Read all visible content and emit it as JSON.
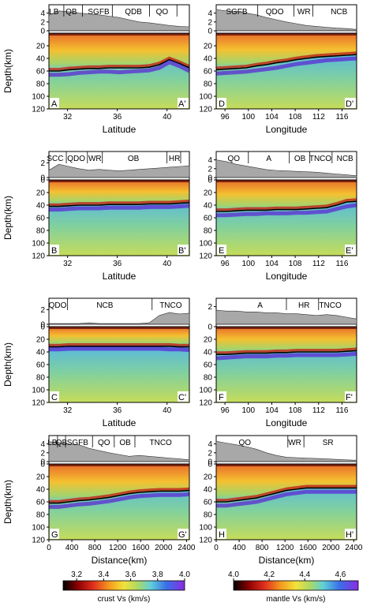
{
  "chart_data": {
    "type": "heatmap",
    "panels": [
      {
        "id": "A",
        "start_label": "A",
        "end_label": "A'",
        "xlabel": "Latitude",
        "xlim": [
          30.5,
          41.8
        ],
        "xticks": [
          "32",
          "36",
          "40"
        ],
        "xtick_values": [
          32,
          36,
          40
        ],
        "ylabel": "Depth(km)",
        "ylim": [
          0,
          120
        ],
        "yticks": [
          "20",
          "40",
          "60",
          "80",
          "100",
          "120"
        ],
        "elev_ticks": [
          "0",
          "2",
          "4"
        ],
        "elev_max": 5,
        "regions": [
          {
            "label": "LB",
            "x": 30.9
          },
          {
            "label": "QB",
            "x": 32.3
          },
          {
            "label": "SGFB",
            "x": 34.5
          },
          {
            "label": "QDB",
            "x": 37.3
          },
          {
            "label": "QO",
            "x": 39.6
          }
        ],
        "region_ticks": [
          31.7,
          33.2,
          35.6,
          38.6,
          40.8
        ],
        "moho_depth": [
          60,
          60,
          58,
          57,
          56,
          56,
          55,
          55,
          55,
          55,
          54,
          50,
          42,
          48,
          55
        ],
        "lab_depth": [
          66,
          66,
          65,
          63,
          62,
          61,
          61,
          62,
          61,
          60,
          59,
          55,
          46,
          52,
          60
        ],
        "topography": [
          3.5,
          4.5,
          4.3,
          4.0,
          3.8,
          3.6,
          3.3,
          3.0,
          2.5,
          2.0,
          1.8,
          1.5,
          1.2,
          1.0,
          0.9
        ]
      },
      {
        "id": "D",
        "start_label": "D",
        "end_label": "D'",
        "xlabel": "Longitude",
        "xlim": [
          94.5,
          118.5
        ],
        "xticks": [
          "96",
          "100",
          "104",
          "108",
          "112",
          "116"
        ],
        "xtick_values": [
          96,
          100,
          104,
          108,
          112,
          116
        ],
        "ylabel": "",
        "ylim": [
          0,
          120
        ],
        "yticks": [
          "20",
          "40",
          "60",
          "80",
          "100",
          "120"
        ],
        "elev_ticks": [
          "0",
          "2",
          "4"
        ],
        "elev_max": 5,
        "regions": [
          {
            "label": "SGFB",
            "x": 98.0
          },
          {
            "label": "QDO",
            "x": 104.5
          },
          {
            "label": "WR",
            "x": 109.5
          },
          {
            "label": "NCB",
            "x": 115.5
          }
        ],
        "region_ticks": [
          101.6,
          107.8,
          111.0
        ],
        "moho_depth": [
          58,
          57,
          56,
          55,
          52,
          50,
          47,
          45,
          42,
          40,
          38,
          37,
          36,
          35,
          34
        ],
        "lab_depth": [
          64,
          63,
          62,
          61,
          59,
          57,
          55,
          52,
          49,
          47,
          45,
          43,
          42,
          41,
          40
        ],
        "topography": [
          4.8,
          4.5,
          4.4,
          4.0,
          3.6,
          3.0,
          2.5,
          2.0,
          1.6,
          1.2,
          1.0,
          0.8,
          0.6,
          0.5,
          0.3
        ]
      },
      {
        "id": "B",
        "start_label": "B",
        "end_label": "B'",
        "xlabel": "Latitude",
        "xlim": [
          30.5,
          41.8
        ],
        "xticks": [
          "32",
          "36",
          "40"
        ],
        "xtick_values": [
          32,
          36,
          40
        ],
        "ylabel": "Depth(km)",
        "ylim": [
          0,
          120
        ],
        "yticks": [
          "0",
          "20",
          "40",
          "60",
          "80",
          "100",
          "120"
        ],
        "elev_ticks": [
          "0",
          "2"
        ],
        "elev_max": 3,
        "regions": [
          {
            "label": "SCC",
            "x": 31.0
          },
          {
            "label": "QDO",
            "x": 32.7
          },
          {
            "label": "WR",
            "x": 34.2
          },
          {
            "label": "OB",
            "x": 37.3
          },
          {
            "label": "HR",
            "x": 40.6
          }
        ],
        "region_ticks": [
          31.9,
          33.6,
          34.8,
          40.0,
          41.1
        ],
        "moho_depth": [
          42,
          42,
          41,
          40,
          40,
          40,
          39,
          39,
          39,
          39,
          38,
          38,
          38,
          37,
          36
        ],
        "lab_depth": [
          47,
          47,
          46,
          45,
          45,
          45,
          44,
          44,
          44,
          44,
          43,
          43,
          43,
          42,
          41
        ],
        "topography": [
          1.0,
          1.8,
          1.5,
          1.2,
          1.0,
          1.1,
          1.0,
          0.9,
          1.0,
          1.1,
          1.2,
          1.3,
          1.4,
          1.5,
          1.6
        ]
      },
      {
        "id": "E",
        "start_label": "E",
        "end_label": "E'",
        "xlabel": "Longitude",
        "xlim": [
          94.5,
          118.5
        ],
        "xticks": [
          "96",
          "100",
          "104",
          "108",
          "112",
          "116"
        ],
        "xtick_values": [
          96,
          100,
          104,
          108,
          112,
          116
        ],
        "ylabel": "",
        "ylim": [
          0,
          120
        ],
        "yticks": [
          "0",
          "20",
          "40",
          "60",
          "80",
          "100",
          "120"
        ],
        "elev_ticks": [
          "0",
          "2",
          "4"
        ],
        "elev_max": 5,
        "regions": [
          {
            "label": "QO",
            "x": 97.5
          },
          {
            "label": "A",
            "x": 103.5
          },
          {
            "label": "OB",
            "x": 108.8
          },
          {
            "label": "TNCO",
            "x": 112.3
          },
          {
            "label": "NCB",
            "x": 116.5
          }
        ],
        "region_ticks": [
          100.0,
          107.0,
          110.5,
          114.3
        ],
        "moho_depth": [
          50,
          50,
          49,
          48,
          48,
          48,
          47,
          47,
          47,
          46,
          45,
          44,
          40,
          35,
          34
        ],
        "lab_depth": [
          56,
          56,
          55,
          54,
          54,
          53,
          53,
          53,
          52,
          52,
          51,
          50,
          46,
          42,
          40
        ],
        "topography": [
          4.0,
          3.6,
          3.0,
          2.6,
          2.2,
          1.8,
          1.6,
          1.5,
          1.4,
          1.3,
          1.2,
          1.0,
          0.8,
          0.6,
          0.4
        ]
      },
      {
        "id": "C",
        "start_label": "C",
        "end_label": "C'",
        "xlabel": "Latitude",
        "xlim": [
          30.5,
          41.8
        ],
        "xticks": [
          "32",
          "36",
          "40"
        ],
        "xtick_values": [
          32,
          36,
          40
        ],
        "ylabel": "Depth(km)",
        "ylim": [
          0,
          120
        ],
        "yticks": [
          "0",
          "20",
          "40",
          "60",
          "80",
          "100",
          "120"
        ],
        "elev_ticks": [
          "0",
          "2"
        ],
        "elev_max": 3,
        "regions": [
          {
            "label": "QDO",
            "x": 31.2
          },
          {
            "label": "NCB",
            "x": 35.0
          },
          {
            "label": "TNCO",
            "x": 40.3
          }
        ],
        "region_ticks": [
          32.0,
          38.8
        ],
        "moho_depth": [
          32,
          32,
          31,
          31,
          31,
          31,
          31,
          31,
          31,
          31,
          31,
          31,
          31,
          32,
          32
        ],
        "lab_depth": [
          36,
          36,
          35,
          35,
          35,
          35,
          35,
          35,
          35,
          35,
          35,
          35,
          36,
          36,
          37
        ],
        "topography": [
          0.1,
          0.1,
          0.1,
          0.1,
          0.2,
          0.1,
          0.1,
          0.1,
          0.1,
          0.1,
          0.2,
          1.2,
          1.6,
          1.4,
          1.5
        ]
      },
      {
        "id": "F",
        "start_label": "F",
        "end_label": "F'",
        "xlabel": "Longitude",
        "xlim": [
          94.5,
          118.5
        ],
        "xticks": [
          "96",
          "100",
          "104",
          "108",
          "112",
          "116"
        ],
        "xtick_values": [
          96,
          100,
          104,
          108,
          112,
          116
        ],
        "ylabel": "",
        "ylim": [
          0,
          120
        ],
        "yticks": [
          "0",
          "20",
          "40",
          "60",
          "80",
          "100",
          "120"
        ],
        "elev_ticks": [
          "2"
        ],
        "elev_max": 2.5,
        "regions": [
          {
            "label": "A",
            "x": 102.0
          },
          {
            "label": "HR",
            "x": 109.5
          },
          {
            "label": "TNCO",
            "x": 114.0
          }
        ],
        "region_ticks": [
          106.5,
          112.0
        ],
        "moho_depth": [
          44,
          44,
          43,
          42,
          42,
          42,
          41,
          41,
          40,
          40,
          40,
          40,
          40,
          39,
          38
        ],
        "lab_depth": [
          50,
          49,
          48,
          47,
          47,
          47,
          46,
          46,
          45,
          45,
          45,
          45,
          45,
          44,
          43
        ],
        "topography": [
          1.6,
          1.5,
          1.5,
          1.4,
          1.4,
          1.3,
          1.3,
          1.2,
          1.2,
          1.1,
          1.0,
          1.1,
          1.0,
          0.8,
          0.6
        ]
      },
      {
        "id": "G",
        "start_label": "G",
        "end_label": "G'",
        "xlabel": "Distance(km)",
        "xlim": [
          0,
          2450
        ],
        "xticks": [
          "0",
          "400",
          "800",
          "1200",
          "1600",
          "2000",
          "2400"
        ],
        "xtick_values": [
          0,
          400,
          800,
          1200,
          1600,
          2000,
          2400
        ],
        "ylabel": "Depth(km)",
        "ylim": [
          0,
          120
        ],
        "yticks": [
          "0",
          "20",
          "40",
          "60",
          "80",
          "100",
          "120"
        ],
        "elev_ticks": [
          "0",
          "2",
          "4"
        ],
        "elev_max": 5,
        "regions": [
          {
            "label": "LB",
            "x": 60
          },
          {
            "label": "QB",
            "x": 220
          },
          {
            "label": "SGFB",
            "x": 500
          },
          {
            "label": "QO",
            "x": 960
          },
          {
            "label": "OB",
            "x": 1330
          },
          {
            "label": "TNCO",
            "x": 1950
          }
        ],
        "region_ticks": [
          150,
          290,
          760,
          1140,
          1500
        ],
        "moho_depth": [
          62,
          62,
          60,
          58,
          57,
          55,
          53,
          50,
          47,
          45,
          44,
          43,
          43,
          43,
          42
        ],
        "lab_depth": [
          68,
          68,
          66,
          64,
          63,
          61,
          59,
          56,
          53,
          51,
          50,
          49,
          49,
          49,
          48
        ],
        "topography": [
          4.5,
          4.3,
          4.0,
          3.8,
          3.0,
          2.5,
          2.0,
          1.6,
          1.2,
          1.4,
          1.2,
          1.0,
          0.8,
          0.6,
          0.4
        ]
      },
      {
        "id": "H",
        "start_label": "H",
        "end_label": "H'",
        "xlabel": "Distance(km)",
        "xlim": [
          0,
          2450
        ],
        "xticks": [
          "0",
          "400",
          "800",
          "1200",
          "1600",
          "2000",
          "2400"
        ],
        "xtick_values": [
          0,
          400,
          800,
          1200,
          1600,
          2000,
          2400
        ],
        "ylabel": "",
        "ylim": [
          0,
          120
        ],
        "yticks": [
          "0",
          "20",
          "40",
          "60",
          "80",
          "100",
          "120"
        ],
        "elev_ticks": [
          "0",
          "2",
          "4"
        ],
        "elev_max": 5,
        "regions": [
          {
            "label": "QO",
            "x": 500
          },
          {
            "label": "WR",
            "x": 1370
          },
          {
            "label": "SR",
            "x": 1950
          }
        ],
        "region_ticks": [
          1250,
          1530
        ],
        "moho_depth": [
          60,
          60,
          58,
          56,
          54,
          50,
          46,
          42,
          40,
          38,
          38,
          38,
          38,
          38,
          38
        ],
        "lab_depth": [
          66,
          66,
          64,
          62,
          60,
          56,
          52,
          48,
          46,
          44,
          44,
          44,
          44,
          44,
          44
        ],
        "topography": [
          4.6,
          4.2,
          3.8,
          3.4,
          2.8,
          2.0,
          1.4,
          1.0,
          0.9,
          0.8,
          0.7,
          0.6,
          0.5,
          0.4,
          0.3
        ]
      }
    ],
    "colorbars": [
      {
        "label": "crust Vs (km/s)",
        "range": [
          3.1,
          4.0
        ],
        "ticks": [
          "3.2",
          "3.4",
          "3.6",
          "3.8",
          "4.0"
        ],
        "tick_values": [
          3.2,
          3.4,
          3.6,
          3.8,
          4.0
        ]
      },
      {
        "label": "mantle Vs (km/s)",
        "range": [
          4.0,
          4.7
        ],
        "ticks": [
          "4.0",
          "4.2",
          "4.4",
          "4.6"
        ],
        "tick_values": [
          4.0,
          4.2,
          4.4,
          4.6
        ]
      }
    ]
  }
}
